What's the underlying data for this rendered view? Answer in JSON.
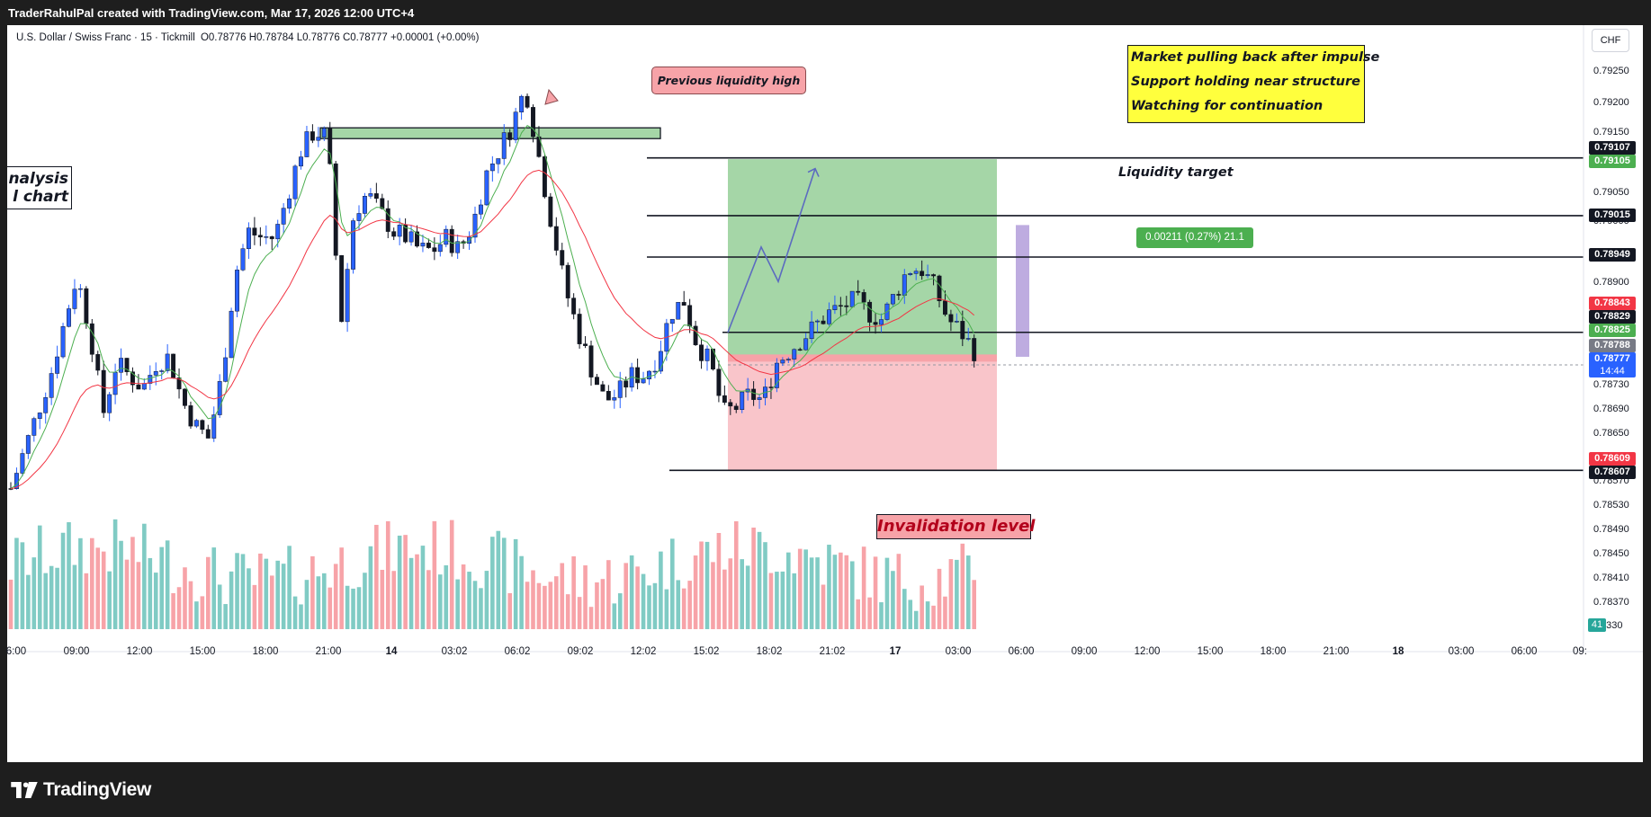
{
  "header": {
    "attribution": "TraderRahulPal created with TradingView.com, Mar 17, 2026 12:00 UTC+4"
  },
  "symbol": {
    "name": "U.S. Dollar / Swiss Franc",
    "interval": "15",
    "broker": "Tickmill",
    "open": "O0.78776",
    "high": "H0.78784",
    "low": "L0.78776",
    "close": "C0.78777",
    "change": "+0.00001 (+0.00%)",
    "currency": "CHF"
  },
  "annotations": {
    "note_lines": [
      "Market pulling back after impulse",
      "Support holding near structure",
      "Watching for continuation"
    ],
    "previous_liquidity_high": "Previous liquidity high",
    "analysis_lines": [
      "nalysis",
      "l chart"
    ],
    "liquidity_target": "Liquidity target",
    "invalidation_level": "Invalidation level",
    "measure": "0.00211 (0.27%) 21.1"
  },
  "price_axis": {
    "ticks": [
      "0.79250",
      "0.79200",
      "0.79150",
      "0.79050",
      "0.79000",
      "0.78900",
      "0.78730",
      "0.78690",
      "0.78650",
      "0.78570",
      "0.78530",
      "0.78490",
      "0.78450",
      "0.78410",
      "0.78370",
      "8330"
    ],
    "labels": [
      {
        "value": "0.79107",
        "color": "#131722"
      },
      {
        "value": "0.79105",
        "color": "#4caf50"
      },
      {
        "value": "0.79015",
        "color": "#131722"
      },
      {
        "value": "0.78949",
        "color": "#131722"
      },
      {
        "value": "0.78843",
        "color": "#f23645"
      },
      {
        "value": "0.78829",
        "color": "#131722"
      },
      {
        "value": "0.78825",
        "color": "#4caf50"
      },
      {
        "value": "0.78788",
        "color": "#787b86"
      },
      {
        "value": "0.78777",
        "color": "#2962ff"
      },
      {
        "value": "0.78609",
        "color": "#f23645"
      },
      {
        "value": "0.78607",
        "color": "#131722"
      }
    ],
    "countdown": "14:44",
    "volume_label": "41"
  },
  "time_axis": {
    "ticks": [
      {
        "label": "6:00",
        "bold": false
      },
      {
        "label": "09:00",
        "bold": false
      },
      {
        "label": "12:00",
        "bold": false
      },
      {
        "label": "15:00",
        "bold": false
      },
      {
        "label": "18:00",
        "bold": false
      },
      {
        "label": "21:00",
        "bold": false
      },
      {
        "label": "14",
        "bold": true
      },
      {
        "label": "03:02",
        "bold": false
      },
      {
        "label": "06:02",
        "bold": false
      },
      {
        "label": "09:02",
        "bold": false
      },
      {
        "label": "12:02",
        "bold": false
      },
      {
        "label": "15:02",
        "bold": false
      },
      {
        "label": "18:02",
        "bold": false
      },
      {
        "label": "21:02",
        "bold": false
      },
      {
        "label": "17",
        "bold": true
      },
      {
        "label": "03:00",
        "bold": false
      },
      {
        "label": "06:00",
        "bold": false
      },
      {
        "label": "09:00",
        "bold": false
      },
      {
        "label": "12:00",
        "bold": false
      },
      {
        "label": "15:00",
        "bold": false
      },
      {
        "label": "18:00",
        "bold": false
      },
      {
        "label": "21:00",
        "bold": false
      },
      {
        "label": "18",
        "bold": true
      },
      {
        "label": "03:00",
        "bold": false
      },
      {
        "label": "06:00",
        "bold": false
      },
      {
        "label": "09:",
        "bold": false
      }
    ]
  },
  "chart_data": {
    "type": "candlestick",
    "ylim": [
      0.7833,
      0.7929
    ],
    "colors": {
      "up": "#2962ff",
      "down": "#131722",
      "vol_up": "#80cbc4",
      "vol_down": "#f7a3a8",
      "ema_fast": "#4caf50",
      "ema_slow": "#f23645"
    },
    "levels": {
      "previous_high_zone": [
        0.7914,
        0.79155
      ],
      "liquidity_target": 0.79107,
      "level_1": 0.79015,
      "level_2": 0.78949,
      "entry": 0.78829,
      "invalidation": 0.78609,
      "reward_zone": [
        0.78788,
        0.79105
      ],
      "risk_zone": [
        0.78609,
        0.78788
      ]
    },
    "close_path": [
      0.7858,
      0.7864,
      0.787,
      0.7876,
      0.7884,
      0.7892,
      0.7883,
      0.787,
      0.7878,
      0.7876,
      0.7874,
      0.7878,
      0.7879,
      0.7872,
      0.7868,
      0.7866,
      0.7876,
      0.7892,
      0.7899,
      0.7898,
      0.7898,
      0.7905,
      0.7912,
      0.7915,
      0.7914,
      0.7884,
      0.7902,
      0.7905,
      0.7902,
      0.7899,
      0.7898,
      0.7896,
      0.7896,
      0.7898,
      0.7896,
      0.79,
      0.7908,
      0.7912,
      0.7916,
      0.7922,
      0.7911,
      0.79,
      0.789,
      0.7883,
      0.7877,
      0.7872,
      0.7873,
      0.7876,
      0.7876,
      0.7879,
      0.7886,
      0.7888,
      0.7881,
      0.7878,
      0.787,
      0.7871,
      0.7873,
      0.7872,
      0.7878,
      0.788,
      0.7882,
      0.7884,
      0.7886,
      0.7887,
      0.7888,
      0.7886,
      0.7885,
      0.7889,
      0.7893,
      0.7893,
      0.789,
      0.7885,
      0.7883,
      0.788
    ]
  }
}
